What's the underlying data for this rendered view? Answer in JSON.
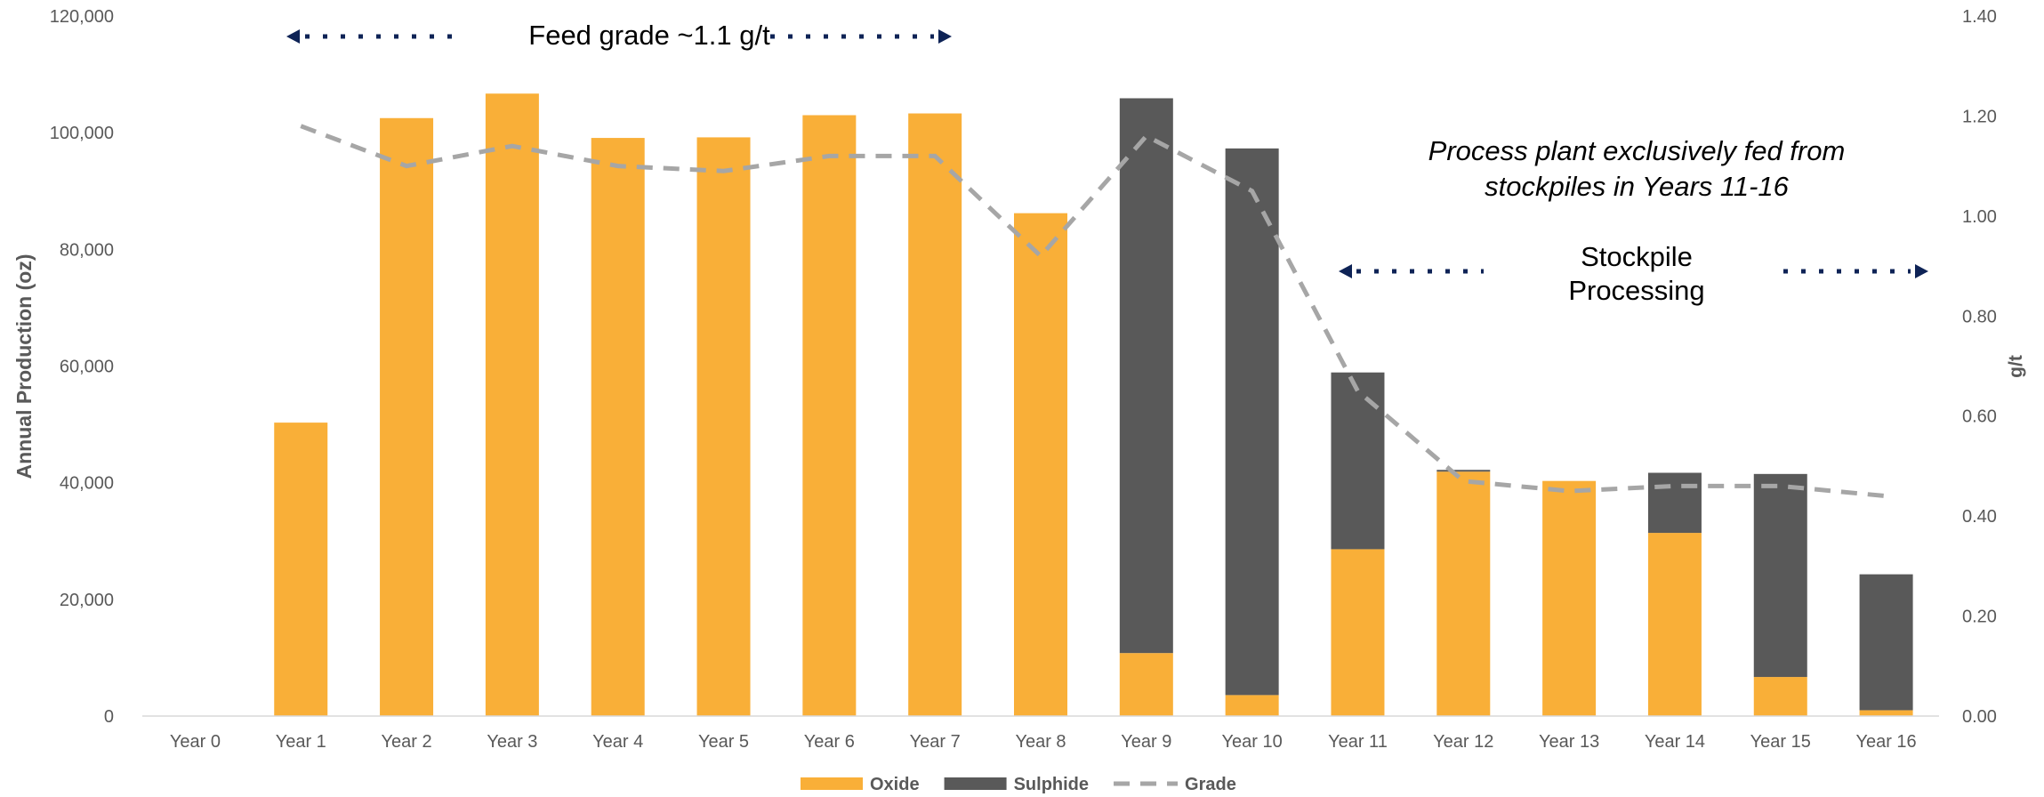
{
  "chart_data": {
    "type": "bar",
    "stacked": true,
    "categories": [
      "Year 0",
      "Year 1",
      "Year 2",
      "Year 3",
      "Year 4",
      "Year 5",
      "Year 6",
      "Year 7",
      "Year 8",
      "Year 9",
      "Year 10",
      "Year 11",
      "Year 12",
      "Year 13",
      "Year 14",
      "Year 15",
      "Year 16"
    ],
    "series": [
      {
        "name": "Oxide",
        "kind": "bar",
        "axis": "left",
        "color": "#F9AF38",
        "values": [
          0,
          50300,
          102500,
          106700,
          99100,
          99200,
          103000,
          103300,
          86200,
          10800,
          3600,
          28600,
          41900,
          40300,
          31400,
          6700,
          1000
        ]
      },
      {
        "name": "Sulphide",
        "kind": "bar",
        "axis": "left",
        "color": "#595959",
        "values": [
          0,
          0,
          0,
          0,
          0,
          0,
          0,
          0,
          0,
          95100,
          93700,
          30300,
          300,
          0,
          10300,
          34800,
          23300
        ]
      },
      {
        "name": "Grade",
        "kind": "line",
        "axis": "right",
        "color": "#A6A6A6",
        "dashed": true,
        "values": [
          null,
          1.18,
          1.1,
          1.14,
          1.1,
          1.09,
          1.12,
          1.12,
          0.92,
          1.16,
          1.05,
          0.65,
          0.47,
          0.45,
          0.46,
          0.46,
          0.44
        ]
      }
    ],
    "ylabel": "Annual Production (oz)",
    "y2label": "g/t",
    "ylim": [
      0,
      120000
    ],
    "y2lim": [
      0,
      1.4
    ],
    "yticks": [
      0,
      20000,
      40000,
      60000,
      80000,
      100000,
      120000
    ],
    "yticklabels": [
      "0",
      "20,000",
      "40,000",
      "60,000",
      "80,000",
      "100,000",
      "120,000"
    ],
    "y2ticks": [
      0,
      0.2,
      0.4,
      0.6,
      0.8,
      1.0,
      1.2,
      1.4
    ],
    "y2ticklabels": [
      "0.00",
      "0.20",
      "0.40",
      "0.60",
      "0.80",
      "1.00",
      "1.20",
      "1.40"
    ],
    "grid": false,
    "legend_position": "bottom",
    "annotations": {
      "feed_grade": "Feed grade ~1.1 g/t",
      "process_plant_line1": "Process plant exclusively fed from",
      "process_plant_line2": "stockpiles in Years 11-16",
      "stockpile_line1": "Stockpile",
      "stockpile_line2": "Processing"
    },
    "annotation_color": "#0E2356"
  }
}
